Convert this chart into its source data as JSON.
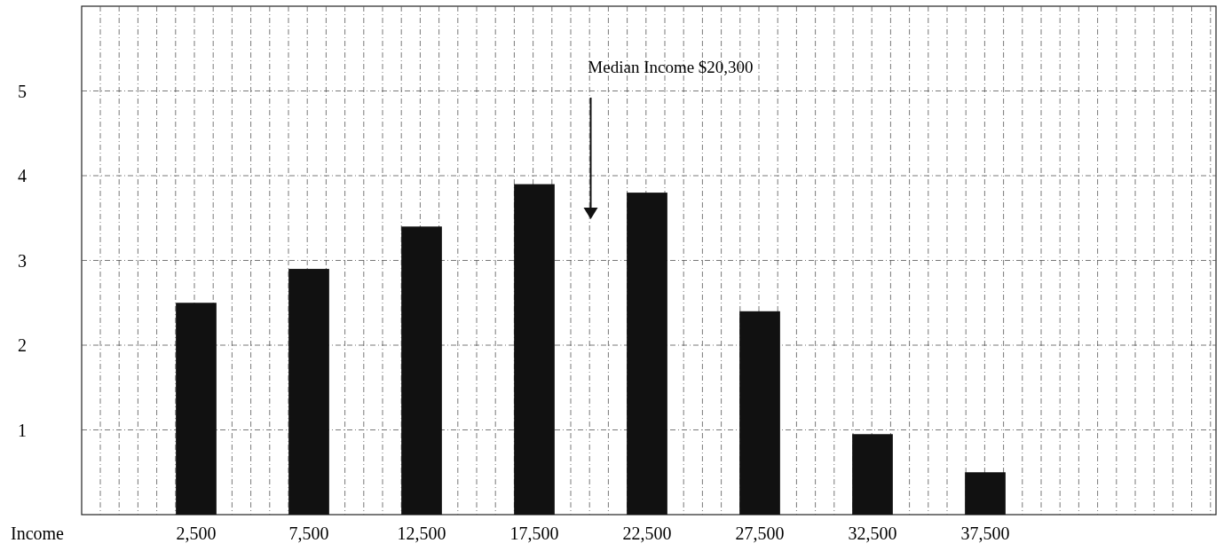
{
  "chart_data": {
    "type": "bar",
    "xlabel": "Income",
    "categories": [
      "2,500",
      "7,500",
      "12,500",
      "17,500",
      "22,500",
      "27,500",
      "32,500",
      "37,500"
    ],
    "values": [
      2.5,
      2.9,
      3.4,
      3.9,
      3.8,
      2.4,
      0.95,
      0.5
    ],
    "color": "#111111",
    "ylim": [
      0,
      6
    ],
    "yticks": [
      1,
      2,
      3,
      4,
      5
    ],
    "grid": true,
    "annotations": [
      "Median Income  $20,300"
    ]
  }
}
